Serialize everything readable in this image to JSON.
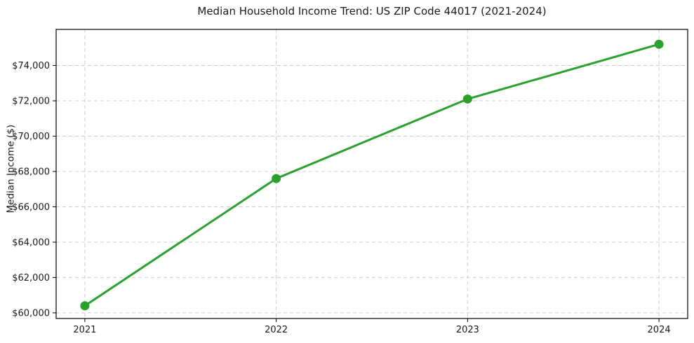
{
  "chart_data": {
    "type": "line",
    "title": "Median Household Income Trend: US ZIP Code 44017 (2021-2024)",
    "xlabel": "",
    "ylabel": "Median Income ($)",
    "x": [
      2021,
      2022,
      2023,
      2024
    ],
    "xtick_labels": [
      "2021",
      "2022",
      "2023",
      "2024"
    ],
    "series": [
      {
        "name": "Median Household Income",
        "values": [
          60400,
          67600,
          72100,
          75200
        ],
        "color": "#2ca02c",
        "marker": "circle",
        "line_width": 3,
        "marker_radius": 6.5
      }
    ],
    "yticks": [
      60000,
      62000,
      64000,
      66000,
      68000,
      70000,
      72000,
      74000
    ],
    "ytick_labels": [
      "$60,000",
      "$62,000",
      "$64,000",
      "$66,000",
      "$68,000",
      "$70,000",
      "$72,000",
      "$74,000"
    ],
    "xlim": [
      2020.85,
      2024.15
    ],
    "ylim": [
      59680,
      76040
    ],
    "grid": true,
    "grid_style": "dashed",
    "grid_color": "#cccccc",
    "grid_dash": "5,4",
    "background": "#ffffff",
    "spine_color": "#000000",
    "legend": "none"
  }
}
